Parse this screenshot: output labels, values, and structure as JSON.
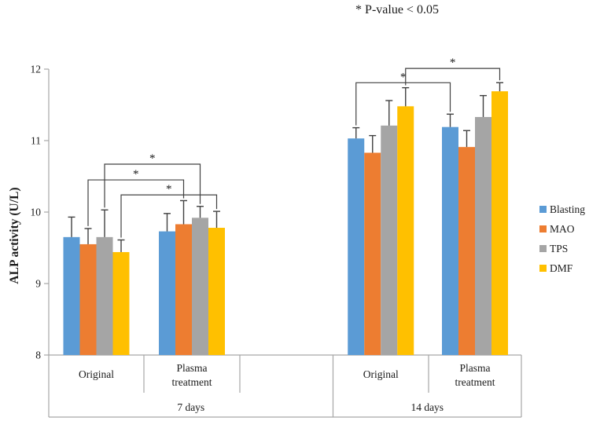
{
  "chart_data": {
    "type": "bar",
    "title": "",
    "annotation": "* P-value < 0.05",
    "ylabel": "ALP activity (U/L)",
    "xlabel": "",
    "ylim": [
      8,
      12
    ],
    "yticks": [
      8,
      9,
      10,
      11,
      12
    ],
    "grid": false,
    "legend_position": "right",
    "outer_categories": [
      "7 days",
      "14 days"
    ],
    "categories": [
      "Original",
      "Plasma treatment",
      "Original",
      "Plasma treatment"
    ],
    "series": [
      {
        "name": "Blasting",
        "color": "#5B9BD5",
        "values": [
          9.65,
          9.73,
          11.03,
          11.19
        ],
        "errors_plus": [
          0.28,
          0.25,
          0.15,
          0.18
        ]
      },
      {
        "name": "MAO",
        "color": "#ED7D31",
        "values": [
          9.55,
          9.83,
          10.83,
          10.91
        ],
        "errors_plus": [
          0.22,
          0.33,
          0.24,
          0.23
        ]
      },
      {
        "name": "TPS",
        "color": "#A5A5A5",
        "values": [
          9.65,
          9.92,
          11.21,
          11.33
        ],
        "errors_plus": [
          0.38,
          0.16,
          0.35,
          0.3
        ]
      },
      {
        "name": "DMF",
        "color": "#FFC000",
        "values": [
          9.44,
          9.78,
          11.48,
          11.69
        ],
        "errors_plus": [
          0.17,
          0.23,
          0.26,
          0.12
        ]
      }
    ],
    "significance_brackets": [
      {
        "label": "*",
        "series": "TPS",
        "from_category": 0,
        "to_category": 1,
        "height": 10.67
      },
      {
        "label": "*",
        "series": "MAO",
        "from_category": 0,
        "to_category": 1,
        "height": 10.45
      },
      {
        "label": "*",
        "series": "DMF",
        "from_category": 0,
        "to_category": 1,
        "height": 10.24
      },
      {
        "label": "*",
        "series": "Blasting",
        "from_category": 2,
        "to_category": 3,
        "height": 11.81
      },
      {
        "label": "*",
        "series": "DMF",
        "from_category": 2,
        "to_category": 3,
        "height": 12.01
      }
    ],
    "colors": {
      "axis": "#a6a6a6",
      "error_bar": "#404040",
      "text": "#1a1a1a"
    }
  }
}
